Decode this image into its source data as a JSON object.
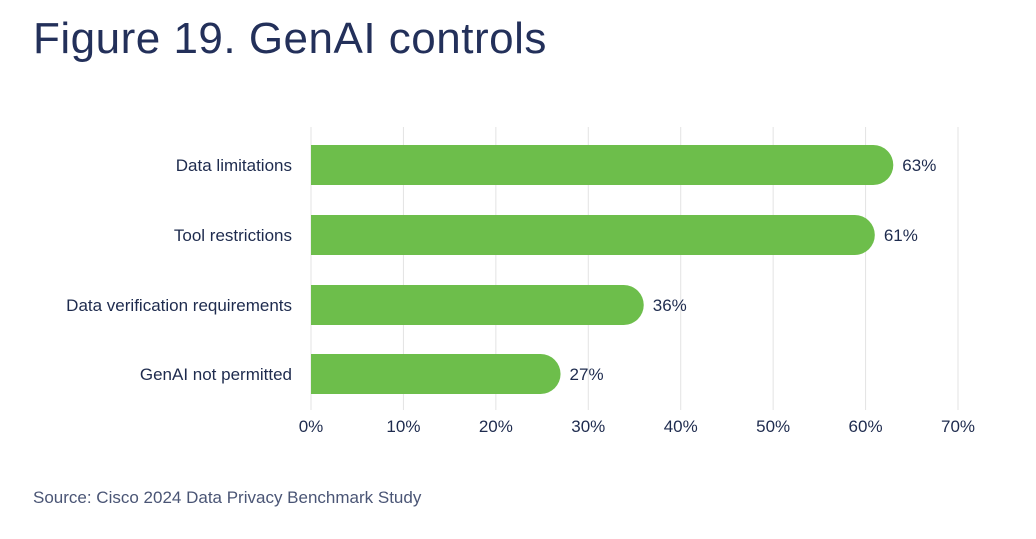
{
  "chart_data": {
    "type": "bar",
    "orientation": "horizontal",
    "title": "Figure 19. GenAI controls",
    "categories": [
      "Data limitations",
      "Tool restrictions",
      "Data verification requirements",
      "GenAI not permitted"
    ],
    "values": [
      63,
      61,
      36,
      27
    ],
    "data_labels": [
      "63%",
      "61%",
      "36%",
      "27%"
    ],
    "xlim": [
      0,
      70
    ],
    "x_ticks": [
      "0%",
      "10%",
      "20%",
      "30%",
      "40%",
      "50%",
      "60%",
      "70%"
    ],
    "grid": "vertical",
    "bar_color": "#6dbe4b",
    "source": "Source: Cisco 2024 Data Privacy Benchmark Study"
  }
}
